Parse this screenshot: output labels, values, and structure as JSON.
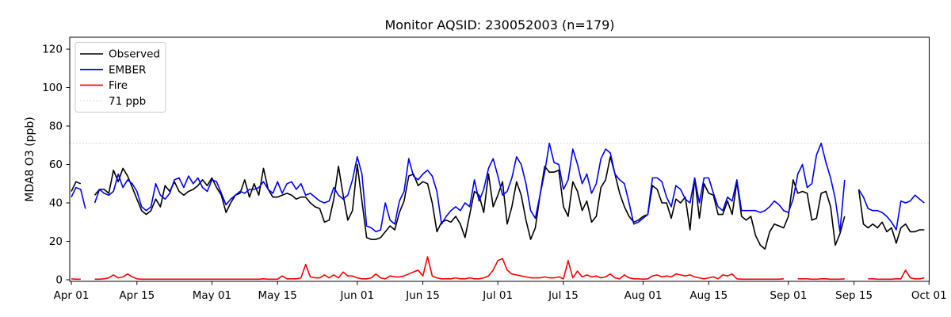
{
  "chart_data": {
    "type": "line",
    "title": "Monitor AQSID: 230052003 (n=179)",
    "ylabel": "MDA8 O3 (ppb)",
    "n_points": 179,
    "x_unit": "day index from Apr 01",
    "xlim_days": [
      -0.34,
      183.04
    ],
    "ylim": [
      -0.82,
      126.2
    ],
    "grid": false,
    "y_ticks": [
      0,
      20,
      40,
      60,
      80,
      100,
      120
    ],
    "x_ticks": [
      {
        "label": "Apr 01",
        "day": 0
      },
      {
        "label": "Apr 15",
        "day": 14
      },
      {
        "label": "May 01",
        "day": 30
      },
      {
        "label": "May 15",
        "day": 44
      },
      {
        "label": "Jun 01",
        "day": 61
      },
      {
        "label": "Jun 15",
        "day": 75
      },
      {
        "label": "Jul 01",
        "day": 91
      },
      {
        "label": "Jul 15",
        "day": 105
      },
      {
        "label": "Aug 01",
        "day": 122
      },
      {
        "label": "Aug 15",
        "day": 136
      },
      {
        "label": "Sep 01",
        "day": 153
      },
      {
        "label": "Sep 15",
        "day": 167
      },
      {
        "label": "Oct 01",
        "day": 183
      }
    ],
    "threshold": {
      "label": "71 ppb",
      "value": 71,
      "color": "#d3d3d3",
      "style": "dotted"
    },
    "legend": {
      "position": "upper-left",
      "entries": [
        "Observed",
        "EMBER",
        "Fire",
        "71 ppb"
      ]
    },
    "series": [
      {
        "name": "Observed",
        "color": "#000000",
        "style": "solid",
        "values": [
          46,
          51,
          50,
          null,
          null,
          44,
          47,
          47,
          45,
          57,
          51,
          58,
          54,
          48,
          42,
          36,
          34,
          36,
          42,
          38,
          49,
          46,
          51,
          46,
          44,
          46,
          47,
          49,
          52,
          49,
          53,
          48,
          44,
          35,
          40,
          44,
          45,
          52,
          43,
          50,
          44,
          58,
          47,
          43,
          43,
          44,
          45,
          44,
          42,
          43,
          43,
          40,
          38,
          37,
          30,
          31,
          42,
          59,
          44,
          31,
          36,
          60,
          41,
          22,
          21,
          21,
          22,
          25,
          28,
          26,
          35,
          41,
          54,
          55,
          49,
          51,
          50,
          40,
          25,
          30,
          31,
          30,
          33,
          29,
          22,
          34,
          46,
          44,
          35,
          55,
          38,
          44,
          51,
          29,
          38,
          51,
          44,
          31,
          21,
          27,
          44,
          59,
          56,
          56,
          57,
          38,
          33,
          51,
          46,
          36,
          41,
          30,
          33,
          48,
          52,
          64,
          55,
          45,
          38,
          33,
          30,
          31,
          33,
          34,
          49,
          47,
          40,
          40,
          32,
          42,
          40,
          43,
          26,
          53,
          32,
          50,
          45,
          44,
          34,
          34,
          41,
          34,
          51,
          33,
          31,
          33,
          23,
          18,
          16,
          25,
          29,
          28,
          27,
          33,
          52,
          45,
          46,
          45,
          31,
          32,
          45,
          46,
          38,
          18,
          24,
          33,
          null,
          null,
          47,
          29,
          27,
          29,
          27,
          30,
          25,
          27,
          19,
          27,
          29,
          25,
          25,
          26,
          26
        ]
      },
      {
        "name": "EMBER",
        "color": "#0000ff",
        "style": "solid",
        "values": [
          43,
          48,
          47,
          37,
          null,
          40,
          47,
          45,
          44,
          46,
          55,
          48,
          52,
          50,
          46,
          38,
          36,
          38,
          50,
          44,
          42,
          45,
          52,
          53,
          48,
          54,
          50,
          53,
          48,
          46,
          52,
          51,
          45,
          39,
          42,
          44,
          46,
          45,
          47,
          47,
          48,
          51,
          47,
          45,
          51,
          45,
          50,
          51,
          47,
          50,
          44,
          45,
          43,
          41,
          40,
          41,
          48,
          44,
          42,
          44,
          52,
          64,
          55,
          28,
          27,
          25,
          26,
          40,
          31,
          29,
          41,
          46,
          63,
          54,
          52,
          55,
          57,
          54,
          46,
          29,
          33,
          36,
          38,
          36,
          40,
          38,
          52,
          41,
          47,
          58,
          63,
          54,
          44,
          46,
          53,
          64,
          60,
          50,
          36,
          32,
          44,
          56,
          71,
          61,
          60,
          47,
          52,
          68,
          60,
          50,
          55,
          45,
          50,
          63,
          68,
          66,
          55,
          52,
          50,
          40,
          29,
          30,
          32,
          34,
          53,
          53,
          51,
          43,
          38,
          49,
          47,
          42,
          40,
          53,
          40,
          53,
          53,
          45,
          38,
          36,
          43,
          41,
          52,
          36,
          36,
          36,
          36,
          35,
          36,
          38,
          41,
          39,
          36,
          35,
          42,
          55,
          60,
          48,
          50,
          65,
          71,
          61,
          53,
          42,
          25,
          52,
          null,
          null,
          47,
          43,
          37,
          36,
          36,
          35,
          33,
          30,
          26,
          41,
          40,
          41,
          44,
          42,
          40
        ]
      },
      {
        "name": "Fire",
        "color": "#ff0000",
        "style": "solid",
        "values": [
          0.5,
          0.3,
          0.3,
          null,
          null,
          0.3,
          0.3,
          0.5,
          1,
          2.5,
          1,
          1.5,
          3,
          1.5,
          0.5,
          0.3,
          0.3,
          0.3,
          0.3,
          0.3,
          0.3,
          0.3,
          0.3,
          0.3,
          0.3,
          0.3,
          0.3,
          0.3,
          0.3,
          0.3,
          0.3,
          0.3,
          0.3,
          0.3,
          0.3,
          0.3,
          0.3,
          0.3,
          0.3,
          0.3,
          0.3,
          0.5,
          0.3,
          0.3,
          0.3,
          2,
          0.5,
          0.5,
          0.5,
          1,
          8,
          1.5,
          1,
          1,
          2.5,
          1,
          2.5,
          1,
          4,
          2,
          2,
          1,
          0.5,
          0.5,
          1,
          3,
          1,
          0.5,
          2,
          1.5,
          1.5,
          2,
          3,
          4,
          5,
          2,
          12,
          2,
          1,
          0.5,
          0.5,
          0.5,
          1,
          0.5,
          0.5,
          1,
          0.5,
          0.5,
          1,
          2,
          5,
          10,
          11,
          5,
          3,
          2.5,
          2,
          1.5,
          1,
          1,
          1,
          1.5,
          1,
          1,
          1.5,
          0.5,
          10,
          1,
          4.5,
          1.5,
          2.5,
          1.5,
          2,
          1,
          1.5,
          3,
          1,
          0.5,
          2.5,
          1,
          0.5,
          0.5,
          0.3,
          0.5,
          2,
          2.5,
          1.5,
          2,
          1.5,
          3,
          2.5,
          2,
          2.5,
          1.5,
          1,
          0.5,
          1,
          1.5,
          0.5,
          2.5,
          2,
          3,
          0.5,
          0.3,
          0.3,
          0.3,
          0.3,
          0.3,
          0.3,
          0.3,
          0.3,
          0.3,
          0.5,
          null,
          null,
          0.5,
          0.5,
          0.5,
          0.3,
          0.3,
          0.5,
          0.5,
          0.3,
          0.3,
          0.3,
          0.5,
          null,
          null,
          null,
          null,
          0.5,
          0.5,
          0.3,
          0.3,
          0.3,
          0.3,
          0.5,
          0.5,
          5,
          1,
          0.5,
          0.5,
          1
        ]
      }
    ]
  }
}
